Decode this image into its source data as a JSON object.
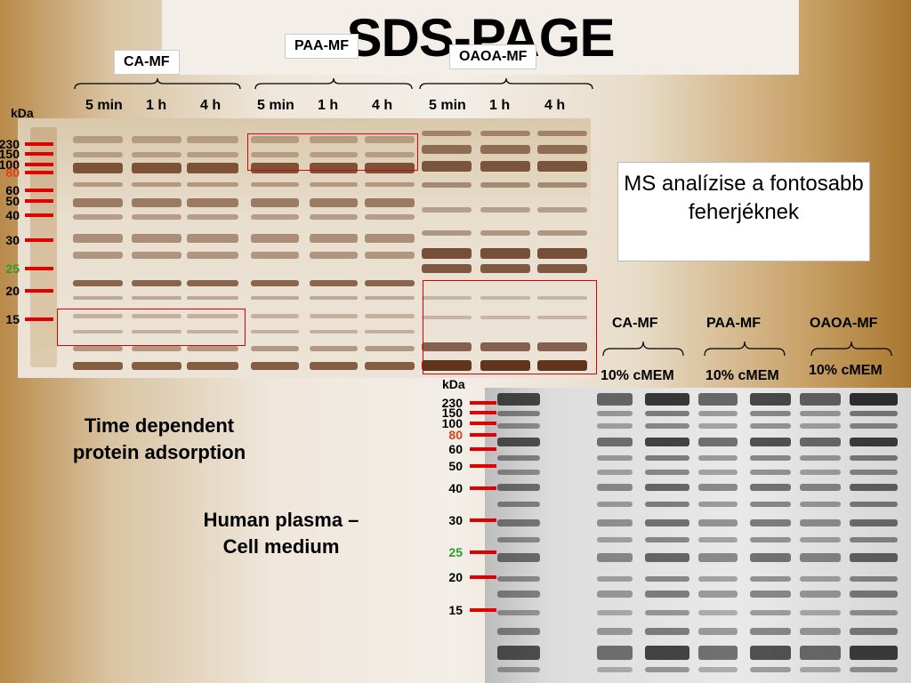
{
  "title": "SDS-PAGE",
  "groups": [
    "CA-MF",
    "PAA-MF",
    "OAOA-MF"
  ],
  "top_lanes": [
    "5 min",
    "1 h",
    "4 h",
    "5 min",
    "1 h",
    "4 h",
    "5 min",
    "1 h",
    "4 h"
  ],
  "kda": "kDa",
  "markers": [
    "230",
    "150",
    "100",
    "80",
    "60",
    "50",
    "40",
    "30",
    "25",
    "20",
    "15"
  ],
  "marker_colors": {
    "80": "#e0401a",
    "25": "#2aa02a",
    "default": "#000000"
  },
  "ms_note": "MS analízise a fontosabb feherjéknek",
  "time_label": "Time dependent protein adsorption",
  "plasma_label": "Human plasma – Cell medium",
  "bottom_groups": [
    "CA-MF",
    "PAA-MF",
    "OAOA-MF"
  ],
  "bottom_sub": [
    "10% cMEM",
    "10% cMEM",
    "10% cMEM"
  ]
}
